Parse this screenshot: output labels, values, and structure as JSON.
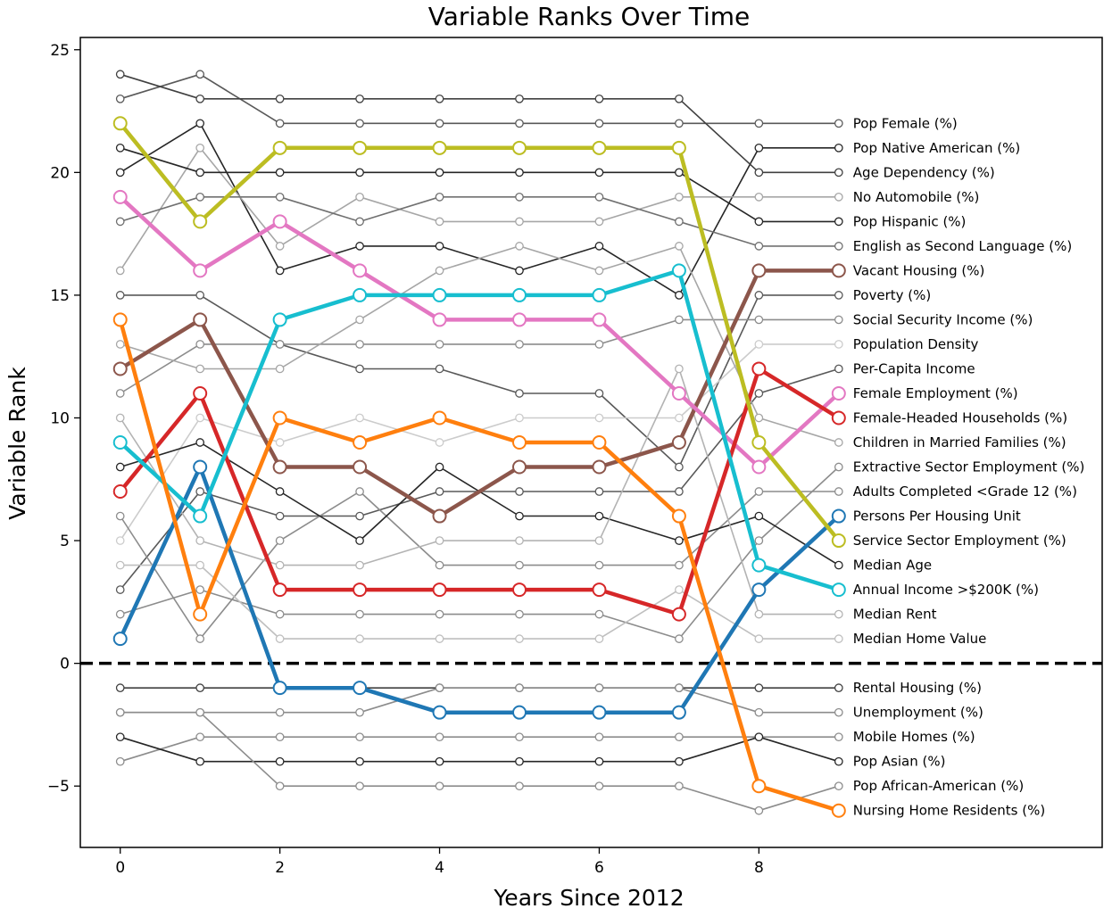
{
  "chart_data": {
    "type": "line",
    "title": "Variable Ranks Over Time",
    "xlabel": "Years Since 2012",
    "ylabel": "Variable Rank",
    "xlim": [
      -0.5,
      12.3
    ],
    "ylim": [
      -7.5,
      25.5
    ],
    "x": [
      0,
      1,
      2,
      3,
      4,
      5,
      6,
      7,
      8,
      9
    ],
    "xticks": [
      0,
      2,
      4,
      6,
      8
    ],
    "yticks": [
      -5,
      0,
      5,
      10,
      15,
      20,
      25
    ],
    "ytick_labels": [
      "−5",
      "0",
      "5",
      "10",
      "15",
      "20",
      "25"
    ],
    "reference_line": {
      "y": 0,
      "style": "dashed",
      "color": "#000000"
    },
    "grid": false,
    "series": [
      {
        "name": "Pop Female (%)",
        "color": "#595959",
        "highlight": false,
        "values": [
          23,
          24,
          22,
          22,
          22,
          22,
          22,
          22,
          22,
          22
        ]
      },
      {
        "name": "Pop Native American (%)",
        "color": "#262626",
        "highlight": false,
        "values": [
          20,
          22,
          16,
          17,
          17,
          16,
          17,
          15,
          21,
          21
        ]
      },
      {
        "name": "Age Dependency (%)",
        "color": "#404040",
        "highlight": false,
        "values": [
          24,
          23,
          23,
          23,
          23,
          23,
          23,
          23,
          20,
          20
        ]
      },
      {
        "name": "No Automobile (%)",
        "color": "#a6a6a6",
        "highlight": false,
        "values": [
          16,
          21,
          17,
          19,
          18,
          18,
          18,
          19,
          19,
          19
        ]
      },
      {
        "name": "Pop Hispanic (%)",
        "color": "#262626",
        "highlight": false,
        "values": [
          21,
          20,
          20,
          20,
          20,
          20,
          20,
          20,
          18,
          18
        ]
      },
      {
        "name": "English as Second Language (%)",
        "color": "#707070",
        "highlight": false,
        "values": [
          18,
          19,
          19,
          18,
          19,
          19,
          19,
          18,
          17,
          17
        ]
      },
      {
        "name": "Vacant Housing (%)",
        "color": "#8c564b",
        "highlight": true,
        "values": [
          12,
          14,
          8,
          8,
          6,
          8,
          8,
          9,
          16,
          16
        ]
      },
      {
        "name": "Poverty (%)",
        "color": "#595959",
        "highlight": false,
        "values": [
          15,
          15,
          13,
          12,
          12,
          11,
          11,
          8,
          15,
          15
        ]
      },
      {
        "name": "Social Security Income (%)",
        "color": "#8c8c8c",
        "highlight": false,
        "values": [
          11,
          13,
          13,
          13,
          13,
          13,
          13,
          14,
          14,
          14
        ]
      },
      {
        "name": "Population Density",
        "color": "#cccccc",
        "highlight": false,
        "values": [
          5,
          10,
          9,
          10,
          9,
          10,
          10,
          10,
          13,
          13
        ]
      },
      {
        "name": "Per-Capita Income",
        "color": "#595959",
        "highlight": false,
        "values": [
          3,
          7,
          6,
          6,
          7,
          7,
          7,
          7,
          11,
          12
        ]
      },
      {
        "name": "Female Employment (%)",
        "color": "#e377c2",
        "highlight": true,
        "values": [
          19,
          16,
          18,
          16,
          14,
          14,
          14,
          11,
          8,
          11
        ]
      },
      {
        "name": "Female-Headed Households (%)",
        "color": "#d62728",
        "highlight": true,
        "values": [
          7,
          11,
          3,
          3,
          3,
          3,
          3,
          2,
          12,
          10
        ]
      },
      {
        "name": "Children in Married Families (%)",
        "color": "#a6a6a6",
        "highlight": false,
        "values": [
          13,
          12,
          12,
          14,
          16,
          17,
          16,
          17,
          10,
          9
        ]
      },
      {
        "name": "Extractive Sector Employment (%)",
        "color": "#8c8c8c",
        "highlight": false,
        "values": [
          2,
          3,
          2,
          2,
          2,
          2,
          2,
          1,
          5,
          8
        ]
      },
      {
        "name": "Adults Completed <Grade 12 (%)",
        "color": "#8c8c8c",
        "highlight": false,
        "values": [
          6,
          1,
          5,
          7,
          4,
          4,
          4,
          4,
          7,
          7
        ]
      },
      {
        "name": "Persons Per Housing Unit",
        "color": "#1f77b4",
        "highlight": true,
        "values": [
          1,
          8,
          -1,
          -1,
          -2,
          -2,
          -2,
          -2,
          3,
          6
        ]
      },
      {
        "name": "Service Sector Employment (%)",
        "color": "#bcbd22",
        "highlight": true,
        "values": [
          22,
          18,
          21,
          21,
          21,
          21,
          21,
          21,
          9,
          5
        ]
      },
      {
        "name": "Median Age",
        "color": "#262626",
        "highlight": false,
        "values": [
          8,
          9,
          7,
          5,
          8,
          6,
          6,
          5,
          6,
          4
        ]
      },
      {
        "name": "Annual Income >$200K (%)",
        "color": "#17becf",
        "highlight": true,
        "values": [
          9,
          6,
          14,
          15,
          15,
          15,
          15,
          16,
          4,
          3
        ]
      },
      {
        "name": "Median Rent",
        "color": "#b3b3b3",
        "highlight": false,
        "values": [
          10,
          5,
          4,
          4,
          5,
          5,
          5,
          12,
          2,
          2
        ]
      },
      {
        "name": "Median Home Value",
        "color": "#bfbfbf",
        "highlight": false,
        "values": [
          4,
          4,
          1,
          1,
          1,
          1,
          1,
          3,
          1,
          1
        ]
      },
      {
        "name": "Rental Housing (%)",
        "color": "#404040",
        "highlight": false,
        "values": [
          -1,
          -1,
          -1,
          -1,
          -1,
          -1,
          -1,
          -1,
          -1,
          -1
        ]
      },
      {
        "name": "Unemployment (%)",
        "color": "#8c8c8c",
        "highlight": false,
        "values": [
          -2,
          -2,
          -2,
          -2,
          -1,
          -1,
          -1,
          -1,
          -2,
          -2
        ]
      },
      {
        "name": "Mobile Homes (%)",
        "color": "#8c8c8c",
        "highlight": false,
        "values": [
          -4,
          -3,
          -3,
          -3,
          -3,
          -3,
          -3,
          -3,
          -3,
          -3
        ]
      },
      {
        "name": "Pop Asian (%)",
        "color": "#262626",
        "highlight": false,
        "values": [
          -3,
          -4,
          -4,
          -4,
          -4,
          -4,
          -4,
          -4,
          -3,
          -4
        ]
      },
      {
        "name": "Pop African-American (%)",
        "color": "#8c8c8c",
        "highlight": false,
        "values": [
          -2,
          -2,
          -5,
          -5,
          -5,
          -5,
          -5,
          -5,
          -6,
          -5
        ]
      },
      {
        "name": "Nursing Home Residents (%)",
        "color": "#ff7f0e",
        "highlight": true,
        "values": [
          14,
          2,
          10,
          9,
          10,
          9,
          9,
          6,
          -5,
          -6
        ]
      }
    ]
  }
}
